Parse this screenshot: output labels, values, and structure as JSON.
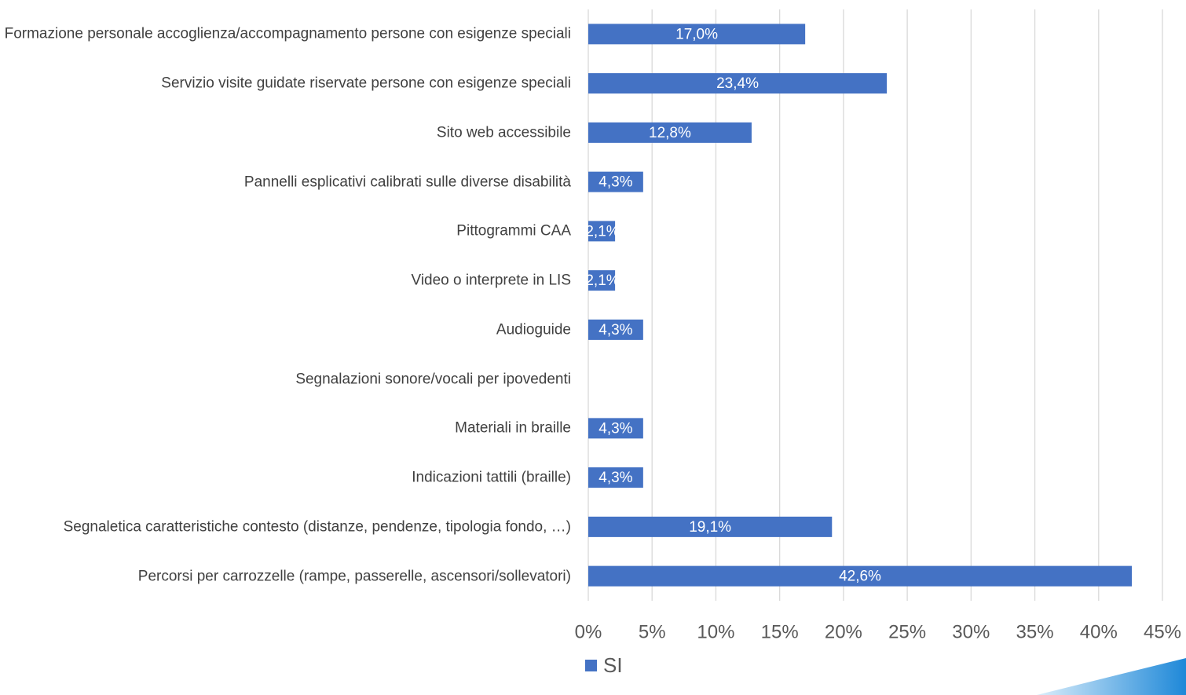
{
  "chart_data": {
    "type": "barh",
    "categories": [
      "Formazione personale accoglienza/accompagnamento persone con esigenze speciali",
      "Servizio visite guidate riservate persone con esigenze speciali",
      "Sito web accessibile",
      "Pannelli esplicativi calibrati sulle diverse disabilità",
      "Pittogrammi CAA",
      "Video o interprete in LIS",
      "Audioguide",
      "Segnalazioni sonore/vocali per ipovedenti",
      "Materiali in braille",
      "Indicazioni tattili (braille)",
      "Segnaletica caratteristiche contesto (distanze, pendenze, tipologia fondo, …)",
      "Percorsi per carrozzelle (rampe, passerelle, ascensori/sollevatori)"
    ],
    "series": [
      {
        "name": "SI",
        "color": "#4472c4",
        "values": [
          17.0,
          23.4,
          12.8,
          4.3,
          2.1,
          2.1,
          4.3,
          0,
          4.3,
          4.3,
          19.1,
          42.6
        ],
        "value_labels": [
          "17,0%",
          "23,4%",
          "12,8%",
          "4,3%",
          "2,1%",
          "2,1%",
          "4,3%",
          null,
          "4,3%",
          "4,3%",
          "19,1%",
          "42,6%"
        ]
      }
    ],
    "xlim": [
      0,
      45
    ],
    "xticks": [
      {
        "value": 0,
        "label": "0%"
      },
      {
        "value": 5,
        "label": "5%"
      },
      {
        "value": 10,
        "label": "10%"
      },
      {
        "value": 15,
        "label": "15%"
      },
      {
        "value": 20,
        "label": "20%"
      },
      {
        "value": 25,
        "label": "25%"
      },
      {
        "value": 30,
        "label": "30%"
      },
      {
        "value": 35,
        "label": "35%"
      },
      {
        "value": 40,
        "label": "40%"
      },
      {
        "value": 45,
        "label": "45%"
      }
    ],
    "grid": true,
    "legend": "bottom"
  }
}
